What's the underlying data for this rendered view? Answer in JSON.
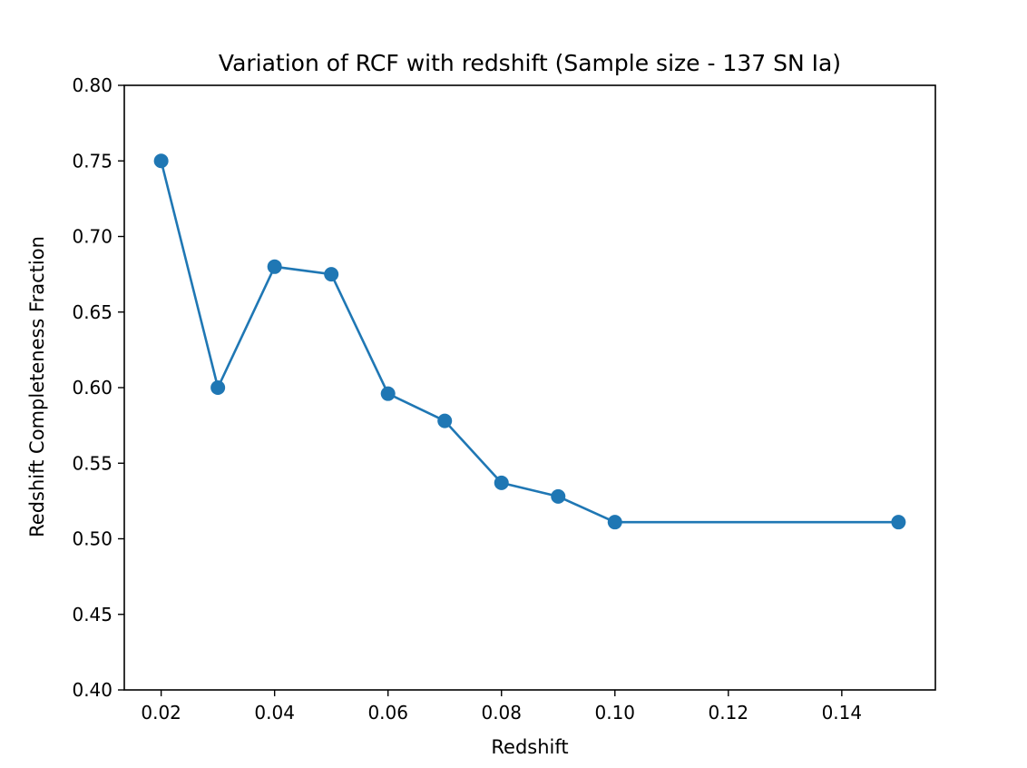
{
  "chart_data": {
    "type": "line",
    "title": "Variation of RCF with redshift (Sample size - 137 SN Ia)",
    "xlabel": "Redshift",
    "ylabel": "Redshift Completeness Fraction",
    "xlim": [
      0.0135,
      0.1565
    ],
    "ylim": [
      0.4,
      0.8
    ],
    "x_ticks": [
      0.02,
      0.04,
      0.06,
      0.08,
      0.1,
      0.12,
      0.14
    ],
    "x_tick_labels": [
      "0.02",
      "0.04",
      "0.06",
      "0.08",
      "0.10",
      "0.12",
      "0.14"
    ],
    "y_ticks": [
      0.4,
      0.45,
      0.5,
      0.55,
      0.6,
      0.65,
      0.7,
      0.75,
      0.8
    ],
    "y_tick_labels": [
      "0.40",
      "0.45",
      "0.50",
      "0.55",
      "0.60",
      "0.65",
      "0.70",
      "0.75",
      "0.80"
    ],
    "grid": false,
    "legend": "none",
    "series": [
      {
        "color": "#1f77b4",
        "marker": "circle",
        "x": [
          0.02,
          0.03,
          0.04,
          0.05,
          0.06,
          0.07,
          0.08,
          0.09,
          0.1,
          0.15
        ],
        "y": [
          0.75,
          0.6,
          0.68,
          0.675,
          0.596,
          0.578,
          0.537,
          0.528,
          0.511,
          0.511
        ]
      }
    ]
  }
}
